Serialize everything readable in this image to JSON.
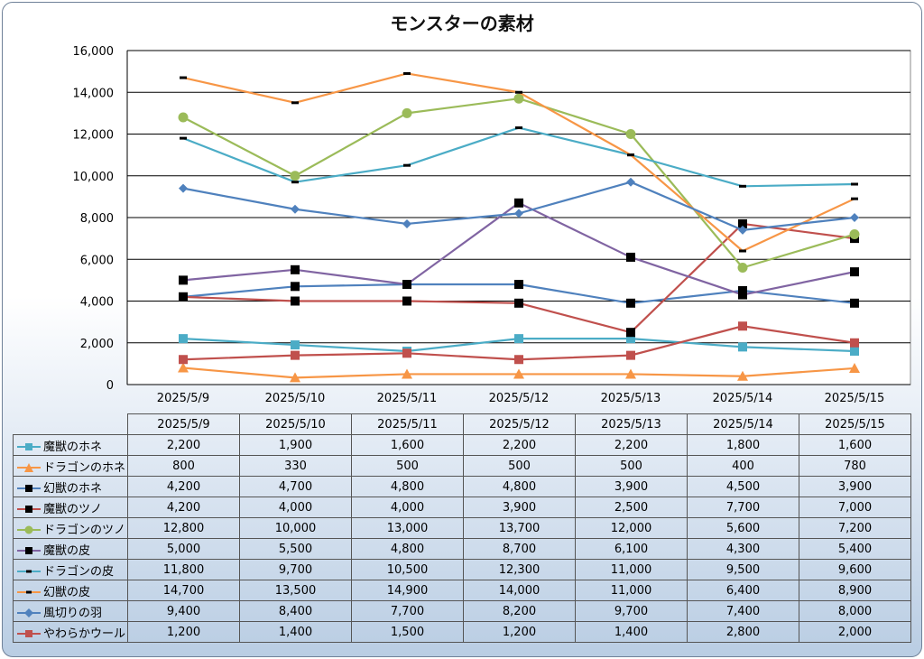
{
  "chart_data": {
    "type": "line",
    "title": "モンスターの素材",
    "categories": [
      "2025/5/9",
      "2025/5/10",
      "2025/5/11",
      "2025/5/12",
      "2025/5/13",
      "2025/5/14",
      "2025/5/15"
    ],
    "ylim": [
      0,
      16000
    ],
    "yticks": [
      "0",
      "2,000",
      "4,000",
      "6,000",
      "8,000",
      "10,000",
      "12,000",
      "14,000",
      "16,000"
    ],
    "grid": true,
    "legend": "data-table",
    "series": [
      {
        "name": "魔獣のホネ",
        "color": "#4bacc6",
        "marker": "square",
        "values": [
          2200,
          1900,
          1600,
          2200,
          2200,
          1800,
          1600
        ],
        "labels": [
          "2,200",
          "1,900",
          "1,600",
          "2,200",
          "2,200",
          "1,800",
          "1,600"
        ]
      },
      {
        "name": "ドラゴンのホネ",
        "color": "#f79646",
        "marker": "triangle",
        "values": [
          800,
          330,
          500,
          500,
          500,
          400,
          780
        ],
        "labels": [
          "800",
          "330",
          "500",
          "500",
          "500",
          "400",
          "780"
        ]
      },
      {
        "name": "幻獣のホネ",
        "color": "#4f81bd",
        "marker": "blacksquare",
        "values": [
          4200,
          4700,
          4800,
          4800,
          3900,
          4500,
          3900
        ],
        "labels": [
          "4,200",
          "4,700",
          "4,800",
          "4,800",
          "3,900",
          "4,500",
          "3,900"
        ]
      },
      {
        "name": "魔獣のツノ",
        "color": "#c0504d",
        "marker": "blacksquare",
        "values": [
          4200,
          4000,
          4000,
          3900,
          2500,
          7700,
          7000
        ],
        "labels": [
          "4,200",
          "4,000",
          "4,000",
          "3,900",
          "2,500",
          "7,700",
          "7,000"
        ]
      },
      {
        "name": "ドラゴンのツノ",
        "color": "#9bbb59",
        "marker": "circle",
        "values": [
          12800,
          10000,
          13000,
          13700,
          12000,
          5600,
          7200
        ],
        "labels": [
          "12,800",
          "10,000",
          "13,000",
          "13,700",
          "12,000",
          "5,600",
          "7,200"
        ]
      },
      {
        "name": "魔獣の皮",
        "color": "#8064a2",
        "marker": "blacksquare",
        "values": [
          5000,
          5500,
          4800,
          8700,
          6100,
          4300,
          5400
        ],
        "labels": [
          "5,000",
          "5,500",
          "4,800",
          "8,700",
          "6,100",
          "4,300",
          "5,400"
        ]
      },
      {
        "name": "ドラゴンの皮",
        "color": "#4bacc6",
        "marker": "dash",
        "values": [
          11800,
          9700,
          10500,
          12300,
          11000,
          9500,
          9600
        ],
        "labels": [
          "11,800",
          "9,700",
          "10,500",
          "12,300",
          "11,000",
          "9,500",
          "9,600"
        ]
      },
      {
        "name": "幻獣の皮",
        "color": "#f79646",
        "marker": "dash",
        "values": [
          14700,
          13500,
          14900,
          14000,
          11000,
          6400,
          8900
        ],
        "labels": [
          "14,700",
          "13,500",
          "14,900",
          "14,000",
          "11,000",
          "6,400",
          "8,900"
        ]
      },
      {
        "name": "風切りの羽",
        "color": "#4f81bd",
        "marker": "diamond",
        "values": [
          9400,
          8400,
          7700,
          8200,
          9700,
          7400,
          8000
        ],
        "labels": [
          "9,400",
          "8,400",
          "7,700",
          "8,200",
          "9,700",
          "7,400",
          "8,000"
        ]
      },
      {
        "name": "やわらかウール",
        "color": "#c0504d",
        "marker": "square",
        "values": [
          1200,
          1400,
          1500,
          1200,
          1400,
          2800,
          2000
        ],
        "labels": [
          "1,200",
          "1,400",
          "1,500",
          "1,200",
          "1,400",
          "2,800",
          "2,000"
        ]
      }
    ]
  }
}
